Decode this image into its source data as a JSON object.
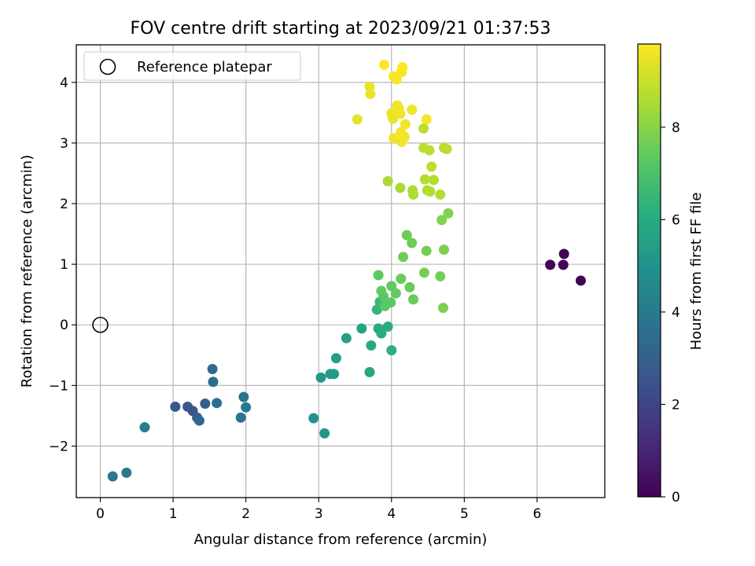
{
  "chart_data": {
    "type": "scatter",
    "title": "FOV centre drift starting at 2023/09/21 01:37:53",
    "xlabel": "Angular distance from reference (arcmin)",
    "ylabel": "Rotation from reference (arcmin)",
    "xlim": [
      -0.33,
      6.93
    ],
    "ylim": [
      -2.85,
      4.62
    ],
    "xticks": [
      0,
      1,
      2,
      3,
      4,
      5,
      6
    ],
    "yticks": [
      -2,
      -1,
      0,
      1,
      2,
      3,
      4
    ],
    "grid": true,
    "legend": {
      "position": "top-left",
      "entries": [
        "Reference platepar"
      ]
    },
    "reference_point": {
      "label": "Reference platepar",
      "x": 0,
      "y": 0,
      "marker": "open-circle"
    },
    "colorbar": {
      "label": "Hours from first FF file",
      "colormap": "viridis",
      "range": [
        0,
        9.8
      ],
      "ticks": [
        0,
        2,
        4,
        6,
        8
      ]
    },
    "series": [
      {
        "points": [
          {
            "x": 6.18,
            "y": 0.99,
            "c": 0.1
          },
          {
            "x": 6.36,
            "y": 0.99,
            "c": 0.1
          },
          {
            "x": 6.37,
            "y": 1.17,
            "c": 0.1
          },
          {
            "x": 6.6,
            "y": 0.73,
            "c": 0.1
          },
          {
            "x": 1.03,
            "y": -1.35,
            "c": 2.6
          },
          {
            "x": 1.2,
            "y": -1.35,
            "c": 2.7
          },
          {
            "x": 1.27,
            "y": -1.42,
            "c": 2.5
          },
          {
            "x": 1.33,
            "y": -1.53,
            "c": 2.9
          },
          {
            "x": 1.36,
            "y": -1.58,
            "c": 3.2
          },
          {
            "x": 1.44,
            "y": -1.3,
            "c": 3.0
          },
          {
            "x": 1.54,
            "y": -0.73,
            "c": 3.4
          },
          {
            "x": 1.55,
            "y": -0.94,
            "c": 3.5
          },
          {
            "x": 1.6,
            "y": -1.29,
            "c": 3.6
          },
          {
            "x": 1.93,
            "y": -1.53,
            "c": 3.7
          },
          {
            "x": 1.97,
            "y": -1.19,
            "c": 3.8
          },
          {
            "x": 2.0,
            "y": -1.36,
            "c": 3.9
          },
          {
            "x": 0.17,
            "y": -2.5,
            "c": 3.9
          },
          {
            "x": 0.36,
            "y": -2.44,
            "c": 4.0
          },
          {
            "x": 0.61,
            "y": -1.69,
            "c": 4.1
          },
          {
            "x": 2.93,
            "y": -1.54,
            "c": 5.0
          },
          {
            "x": 3.08,
            "y": -1.79,
            "c": 5.1
          },
          {
            "x": 3.03,
            "y": -0.87,
            "c": 5.2
          },
          {
            "x": 3.16,
            "y": -0.81,
            "c": 5.3
          },
          {
            "x": 3.21,
            "y": -0.81,
            "c": 5.3
          },
          {
            "x": 3.24,
            "y": -0.55,
            "c": 5.4
          },
          {
            "x": 3.38,
            "y": -0.22,
            "c": 5.5
          },
          {
            "x": 3.59,
            "y": -0.06,
            "c": 5.7
          },
          {
            "x": 3.7,
            "y": -0.78,
            "c": 5.8
          },
          {
            "x": 3.72,
            "y": -0.34,
            "c": 5.9
          },
          {
            "x": 3.82,
            "y": -0.06,
            "c": 6.0
          },
          {
            "x": 3.86,
            "y": -0.14,
            "c": 6.0
          },
          {
            "x": 3.95,
            "y": -0.03,
            "c": 6.1
          },
          {
            "x": 4.0,
            "y": -0.42,
            "c": 6.2
          },
          {
            "x": 3.8,
            "y": 0.25,
            "c": 6.4
          },
          {
            "x": 3.84,
            "y": 0.38,
            "c": 6.5
          },
          {
            "x": 3.82,
            "y": 0.82,
            "c": 7.3
          },
          {
            "x": 3.86,
            "y": 0.56,
            "c": 7.4
          },
          {
            "x": 3.89,
            "y": 0.47,
            "c": 7.3
          },
          {
            "x": 3.91,
            "y": 0.31,
            "c": 7.3
          },
          {
            "x": 3.99,
            "y": 0.37,
            "c": 7.3
          },
          {
            "x": 4.0,
            "y": 0.64,
            "c": 7.4
          },
          {
            "x": 4.06,
            "y": 0.52,
            "c": 7.4
          },
          {
            "x": 4.13,
            "y": 0.76,
            "c": 7.5
          },
          {
            "x": 4.25,
            "y": 0.62,
            "c": 7.5
          },
          {
            "x": 4.3,
            "y": 0.42,
            "c": 7.5
          },
          {
            "x": 4.16,
            "y": 1.12,
            "c": 7.6
          },
          {
            "x": 4.21,
            "y": 1.48,
            "c": 7.6
          },
          {
            "x": 4.28,
            "y": 1.35,
            "c": 7.6
          },
          {
            "x": 4.45,
            "y": 0.86,
            "c": 7.7
          },
          {
            "x": 4.48,
            "y": 1.22,
            "c": 7.7
          },
          {
            "x": 4.67,
            "y": 0.8,
            "c": 7.7
          },
          {
            "x": 4.72,
            "y": 1.24,
            "c": 7.8
          },
          {
            "x": 4.71,
            "y": 0.28,
            "c": 7.8
          },
          {
            "x": 4.69,
            "y": 1.73,
            "c": 7.9
          },
          {
            "x": 4.78,
            "y": 1.84,
            "c": 7.9
          },
          {
            "x": 3.95,
            "y": 2.37,
            "c": 8.5
          },
          {
            "x": 4.12,
            "y": 2.26,
            "c": 8.5
          },
          {
            "x": 4.29,
            "y": 2.22,
            "c": 8.6
          },
          {
            "x": 4.3,
            "y": 2.15,
            "c": 8.6
          },
          {
            "x": 4.46,
            "y": 2.4,
            "c": 8.7
          },
          {
            "x": 4.49,
            "y": 2.22,
            "c": 8.7
          },
          {
            "x": 4.53,
            "y": 2.2,
            "c": 8.7
          },
          {
            "x": 4.58,
            "y": 2.39,
            "c": 8.7
          },
          {
            "x": 4.67,
            "y": 2.15,
            "c": 8.7
          },
          {
            "x": 4.55,
            "y": 2.61,
            "c": 8.8
          },
          {
            "x": 4.44,
            "y": 3.24,
            "c": 8.8
          },
          {
            "x": 4.44,
            "y": 2.92,
            "c": 8.8
          },
          {
            "x": 4.52,
            "y": 2.88,
            "c": 8.8
          },
          {
            "x": 4.72,
            "y": 2.92,
            "c": 8.8
          },
          {
            "x": 4.76,
            "y": 2.9,
            "c": 8.8
          },
          {
            "x": 3.53,
            "y": 3.39,
            "c": 9.4
          },
          {
            "x": 3.71,
            "y": 3.81,
            "c": 9.5
          },
          {
            "x": 3.7,
            "y": 3.93,
            "c": 9.5
          },
          {
            "x": 4.0,
            "y": 3.49,
            "c": 9.5
          },
          {
            "x": 4.02,
            "y": 3.4,
            "c": 9.5
          },
          {
            "x": 4.03,
            "y": 3.08,
            "c": 9.6
          },
          {
            "x": 4.08,
            "y": 3.62,
            "c": 9.6
          },
          {
            "x": 4.1,
            "y": 3.57,
            "c": 9.6
          },
          {
            "x": 4.12,
            "y": 3.48,
            "c": 9.6
          },
          {
            "x": 4.13,
            "y": 3.18,
            "c": 9.6
          },
          {
            "x": 4.14,
            "y": 3.02,
            "c": 9.6
          },
          {
            "x": 4.18,
            "y": 3.1,
            "c": 9.6
          },
          {
            "x": 4.19,
            "y": 3.31,
            "c": 9.6
          },
          {
            "x": 4.28,
            "y": 3.55,
            "c": 9.6
          },
          {
            "x": 4.48,
            "y": 3.39,
            "c": 9.7
          },
          {
            "x": 4.03,
            "y": 4.1,
            "c": 9.7
          },
          {
            "x": 4.07,
            "y": 4.05,
            "c": 9.7
          },
          {
            "x": 4.14,
            "y": 4.17,
            "c": 9.7
          },
          {
            "x": 3.9,
            "y": 4.29,
            "c": 9.8
          },
          {
            "x": 4.15,
            "y": 4.25,
            "c": 9.8
          }
        ]
      }
    ]
  }
}
